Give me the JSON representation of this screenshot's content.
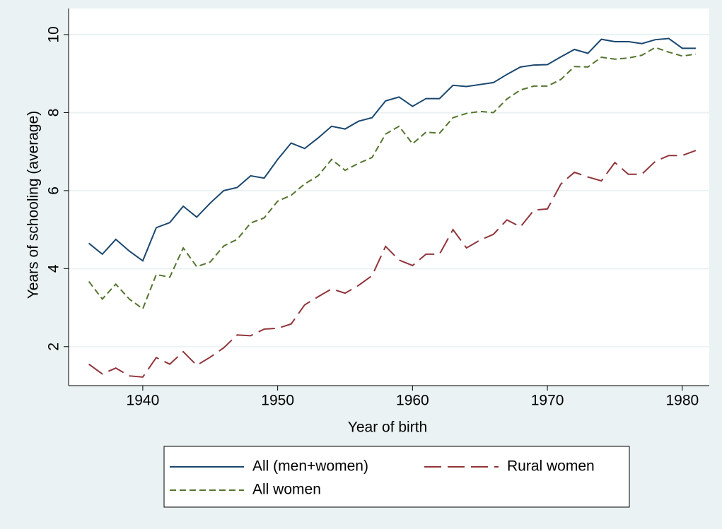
{
  "chart_data": {
    "type": "line",
    "x_label": "Year of birth",
    "y_label": "Years of schooling (average)",
    "x": [
      1936,
      1937,
      1938,
      1939,
      1940,
      1941,
      1942,
      1943,
      1944,
      1945,
      1946,
      1947,
      1948,
      1949,
      1950,
      1951,
      1952,
      1953,
      1954,
      1955,
      1956,
      1957,
      1958,
      1959,
      1960,
      1961,
      1962,
      1963,
      1964,
      1965,
      1966,
      1967,
      1968,
      1969,
      1970,
      1971,
      1972,
      1973,
      1974,
      1975,
      1976,
      1977,
      1978,
      1979,
      1980,
      1981
    ],
    "series": [
      {
        "name": "All (men+women)",
        "color": "#1a476f",
        "style": "solid",
        "values": [
          4.65,
          4.37,
          4.75,
          4.45,
          4.2,
          5.05,
          5.18,
          5.6,
          5.32,
          5.68,
          6.0,
          6.08,
          6.38,
          6.32,
          6.8,
          7.22,
          7.08,
          7.35,
          7.65,
          7.58,
          7.78,
          7.87,
          8.3,
          8.4,
          8.16,
          8.36,
          8.36,
          8.7,
          8.67,
          8.72,
          8.77,
          8.98,
          9.17,
          9.22,
          9.23,
          9.43,
          9.62,
          9.52,
          9.88,
          9.82,
          9.82,
          9.77,
          9.87,
          9.9,
          9.65,
          9.65
        ]
      },
      {
        "name": "Rural women",
        "color": "#90353b",
        "style": "long-dash",
        "values": [
          1.55,
          1.3,
          1.45,
          1.25,
          1.22,
          1.72,
          1.55,
          1.87,
          1.52,
          1.73,
          1.97,
          2.3,
          2.28,
          2.45,
          2.47,
          2.58,
          3.07,
          3.28,
          3.48,
          3.37,
          3.57,
          3.82,
          4.57,
          4.22,
          4.08,
          4.37,
          4.37,
          5.0,
          4.53,
          4.73,
          4.88,
          5.25,
          5.07,
          5.5,
          5.53,
          6.17,
          6.47,
          6.35,
          6.25,
          6.72,
          6.42,
          6.42,
          6.75,
          6.9,
          6.9,
          7.03
        ]
      },
      {
        "name": "All women",
        "color": "#55752f",
        "style": "dash",
        "values": [
          3.67,
          3.22,
          3.6,
          3.22,
          2.97,
          3.85,
          3.78,
          4.53,
          4.05,
          4.17,
          4.58,
          4.75,
          5.17,
          5.3,
          5.73,
          5.88,
          6.17,
          6.38,
          6.8,
          6.52,
          6.7,
          6.85,
          7.45,
          7.65,
          7.2,
          7.5,
          7.47,
          7.87,
          7.98,
          8.03,
          8.0,
          8.35,
          8.58,
          8.68,
          8.68,
          8.85,
          9.18,
          9.17,
          9.42,
          9.37,
          9.4,
          9.47,
          9.67,
          9.55,
          9.45,
          9.5
        ]
      }
    ],
    "xlim": [
      1934.5,
      1982
    ],
    "xticks": [
      1940,
      1950,
      1960,
      1970,
      1980
    ],
    "ylim": [
      1,
      10.67
    ],
    "yticks": [
      2,
      4,
      6,
      8,
      10
    ],
    "grid": true,
    "legend": "bottom"
  }
}
